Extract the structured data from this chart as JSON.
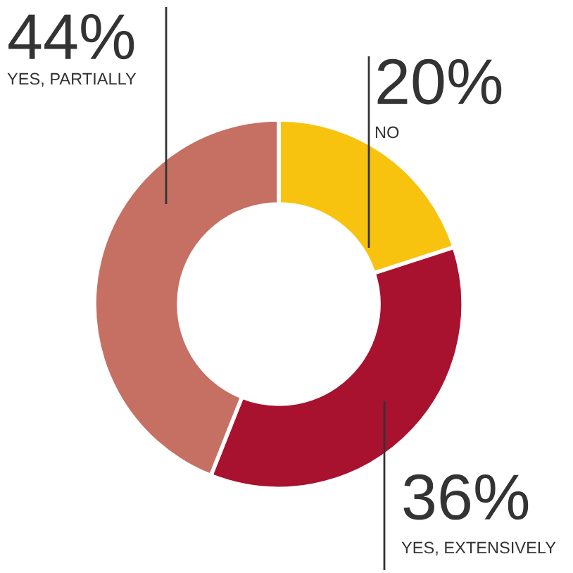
{
  "chart_data": {
    "type": "donut",
    "categories": [
      "NO",
      "YES, EXTENSIVELY",
      "YES, PARTIALLY"
    ],
    "values": [
      20,
      36,
      44
    ],
    "colors": [
      "#f7c30f",
      "#a8122e",
      "#c57062"
    ],
    "value_labels": [
      "20%",
      "36%",
      "44%"
    ],
    "legend": false
  }
}
